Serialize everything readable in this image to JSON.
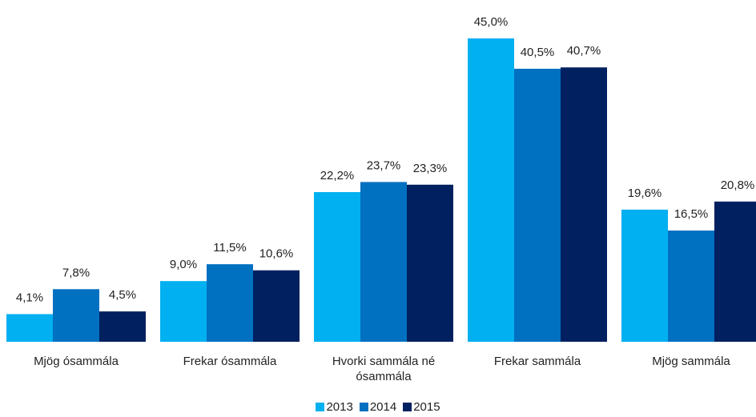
{
  "chart_data": {
    "type": "bar",
    "categories": [
      "Mjög ósammála",
      "Frekar ósammála",
      "Hvorki sammála né ósammála",
      "Frekar sammála",
      "Mjög sammála"
    ],
    "series": [
      {
        "name": "2013",
        "color": "#00b0f0",
        "values": [
          4.1,
          9.0,
          22.2,
          45.0,
          19.6
        ],
        "value_labels": [
          "4,1%",
          "9,0%",
          "22,2%",
          "45,0%",
          "19,6%"
        ]
      },
      {
        "name": "2014",
        "color": "#0070c0",
        "values": [
          7.8,
          11.5,
          23.7,
          40.5,
          16.5
        ],
        "value_labels": [
          "7,8%",
          "11,5%",
          "23,7%",
          "40,5%",
          "16,5%"
        ]
      },
      {
        "name": "2015",
        "color": "#002060",
        "values": [
          4.5,
          10.6,
          23.3,
          40.7,
          20.8
        ],
        "value_labels": [
          "4,5%",
          "10,6%",
          "23,3%",
          "40,7%",
          "20,8%"
        ]
      }
    ],
    "legend": "bottom"
  }
}
